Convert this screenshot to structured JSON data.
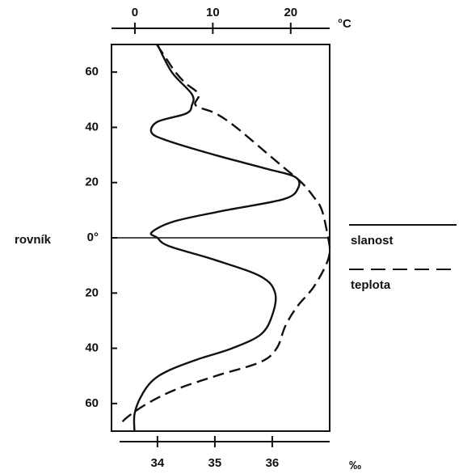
{
  "chart_data": {
    "type": "line",
    "annotations": [
      "rovník"
    ],
    "xlabel": "‰",
    "x2label": "°C",
    "xlim": [
      33.2,
      37.0
    ],
    "xticks": [
      34,
      35,
      36
    ],
    "x2lim": [
      -3,
      25
    ],
    "x2ticks": [
      0,
      10,
      20
    ],
    "ylim": [
      -70,
      70
    ],
    "yticks": [
      {
        "value": 60,
        "label": "60"
      },
      {
        "value": 40,
        "label": "40"
      },
      {
        "value": 20,
        "label": "20"
      },
      {
        "value": 0,
        "label": "0°"
      },
      {
        "value": -20,
        "label": "20"
      },
      {
        "value": -40,
        "label": "40"
      },
      {
        "value": -60,
        "label": "60"
      }
    ],
    "series": [
      {
        "name": "slanost",
        "color": "#111111",
        "line_style": "solid",
        "y": [
          70,
          60,
          52,
          48,
          45,
          42,
          38,
          35,
          30,
          25,
          22,
          18,
          14,
          10,
          6,
          2,
          0,
          -3,
          -8,
          -14,
          -20,
          -28,
          -35,
          -40,
          -44,
          -48,
          -52,
          -58,
          -64,
          -70
        ],
        "values": [
          34.0,
          34.25,
          34.6,
          34.6,
          34.5,
          34.0,
          33.9,
          34.2,
          35.0,
          35.9,
          36.4,
          36.45,
          36.2,
          35.2,
          34.3,
          33.9,
          34.0,
          34.2,
          35.0,
          35.8,
          36.05,
          36.0,
          35.8,
          35.3,
          34.7,
          34.2,
          33.9,
          33.7,
          33.6,
          33.6
        ]
      },
      {
        "name": "teplota",
        "color": "#111111",
        "line_style": "dashed",
        "axis": "x2",
        "y": [
          70,
          65,
          60,
          56,
          52,
          48,
          45,
          40,
          30,
          25,
          20,
          15,
          10,
          0,
          -5,
          -10,
          -18,
          -25,
          -32,
          -40,
          -45,
          -50,
          -55,
          -60,
          -65,
          -68
        ],
        "values": [
          2.8,
          4,
          5.2,
          6.5,
          8.2,
          7.8,
          10.4,
          13,
          17.2,
          19.3,
          21.4,
          22.9,
          24,
          24.8,
          25,
          24.5,
          22.9,
          20.8,
          19.3,
          18.2,
          16.1,
          10.4,
          5.2,
          1.6,
          -1,
          -2
        ]
      }
    ]
  }
}
